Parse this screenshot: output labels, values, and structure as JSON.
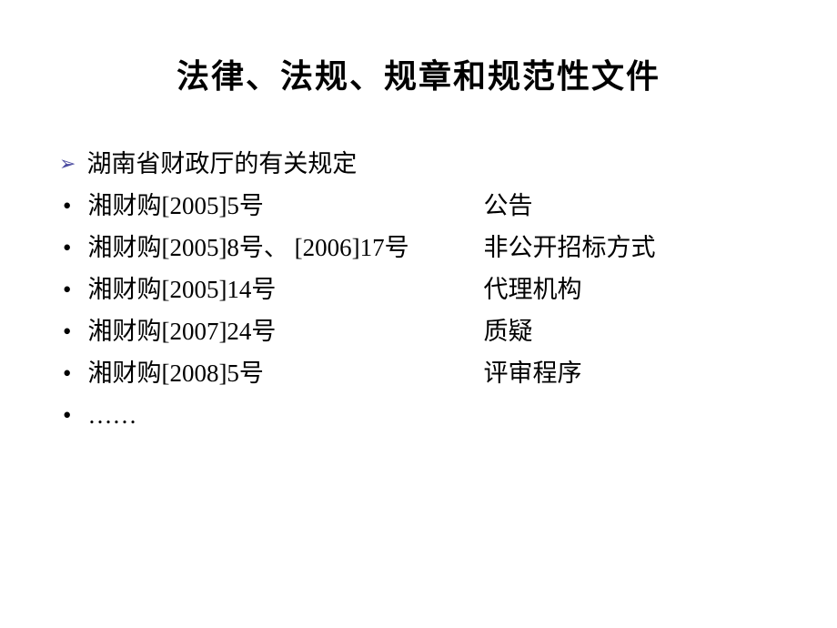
{
  "title": "法律、法规、规章和规范性文件",
  "header": {
    "marker": "➢",
    "text": "湖南省财政厅的有关规定"
  },
  "items": [
    {
      "marker": "•",
      "left": "湘财购[2005]5号",
      "right": "公告"
    },
    {
      "marker": "•",
      "left": "湘财购[2005]8号、 [2006]17号",
      "right": "非公开招标方式"
    },
    {
      "marker": "•",
      "left": "湘财购[2005]14号",
      "right": "代理机构"
    },
    {
      "marker": "•",
      "left": "湘财购[2007]24号",
      "right": "质疑"
    },
    {
      "marker": "•",
      "left": "湘财购[2008]5号",
      "right": "评审程序"
    },
    {
      "marker": "•",
      "left": "……",
      "right": ""
    }
  ],
  "styling": {
    "background_color": "#ffffff",
    "title_color": "#000000",
    "title_fontsize": 36,
    "body_fontsize": 27,
    "arrow_color": "#4a4aa0",
    "text_color": "#000000",
    "title_font": "SimHei",
    "body_font": "SimSun"
  }
}
